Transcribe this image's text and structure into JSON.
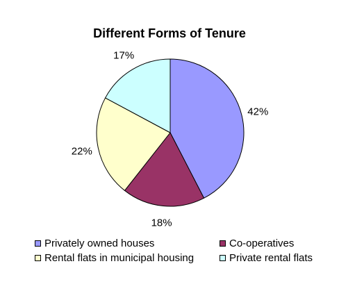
{
  "chart_data": {
    "type": "pie",
    "title": "Different Forms of Tenure",
    "slices": [
      {
        "name": "Privately owned houses",
        "value": 42,
        "label": "42%",
        "color": "#9999ff"
      },
      {
        "name": "Co-operatives",
        "value": 18,
        "label": "18%",
        "color": "#993366"
      },
      {
        "name": "Rental flats in municipal housing",
        "value": 22,
        "label": "22%",
        "color": "#ffffcc"
      },
      {
        "name": "Private rental flats",
        "value": 17,
        "label": "17%",
        "color": "#ccffff"
      }
    ],
    "start_angle": "12 o'clock",
    "direction": "clockwise",
    "legend_position": "bottom"
  }
}
